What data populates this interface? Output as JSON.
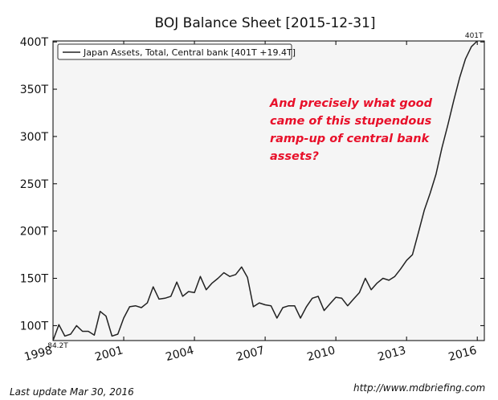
{
  "chart_data": {
    "type": "line",
    "title": "BOJ Balance Sheet  [2015-12-31]",
    "xlabel": "",
    "ylabel": "",
    "xlim": [
      1998,
      2016.3
    ],
    "ylim": [
      84.21,
      401
    ],
    "x_ticks": [
      1998,
      2001,
      2004,
      2007,
      2010,
      2013,
      2016
    ],
    "x_tick_labels": [
      "1998",
      "2001",
      "2004",
      "2007",
      "2010",
      "2013",
      "2016"
    ],
    "y_ticks": [
      100,
      150,
      200,
      250,
      300,
      350,
      400
    ],
    "y_tick_labels": [
      "100T",
      "150T",
      "200T",
      "250T",
      "300T",
      "350T",
      "400T"
    ],
    "grid": false,
    "legend_position": "top-left",
    "series": [
      {
        "name": "Japan Assets, Total, Central bank [401T +19.4T]",
        "color": "#222222",
        "x": [
          1998.0,
          1998.25,
          1998.5,
          1998.75,
          1999.0,
          1999.25,
          1999.5,
          1999.75,
          2000.0,
          2000.25,
          2000.5,
          2000.75,
          2001.0,
          2001.25,
          2001.5,
          2001.75,
          2002.0,
          2002.25,
          2002.5,
          2002.75,
          2003.0,
          2003.25,
          2003.5,
          2003.75,
          2004.0,
          2004.25,
          2004.5,
          2004.75,
          2005.0,
          2005.25,
          2005.5,
          2005.75,
          2006.0,
          2006.25,
          2006.5,
          2006.75,
          2007.0,
          2007.25,
          2007.5,
          2007.75,
          2008.0,
          2008.25,
          2008.5,
          2008.75,
          2009.0,
          2009.25,
          2009.5,
          2009.75,
          2010.0,
          2010.25,
          2010.5,
          2010.75,
          2011.0,
          2011.25,
          2011.5,
          2011.75,
          2012.0,
          2012.25,
          2012.5,
          2012.75,
          2013.0,
          2013.25,
          2013.5,
          2013.75,
          2014.0,
          2014.25,
          2014.5,
          2014.75,
          2015.0,
          2015.25,
          2015.5,
          2015.75,
          2016.0
        ],
        "values": [
          84.21,
          101,
          89,
          91,
          100,
          94,
          94,
          90,
          115,
          110,
          89,
          91,
          108,
          120,
          121,
          119,
          124,
          141,
          128,
          129,
          131,
          146,
          131,
          136,
          135,
          152,
          138,
          145,
          150,
          156,
          152,
          154,
          162,
          151,
          120,
          124,
          122,
          121,
          108,
          119,
          121,
          121,
          108,
          120,
          129,
          131,
          116,
          123,
          130,
          129,
          121,
          128,
          135,
          150,
          138,
          145,
          150,
          148,
          152,
          160,
          169,
          175,
          198,
          222,
          240,
          260,
          288,
          312,
          338,
          362,
          382,
          395,
          401
        ]
      }
    ],
    "point_labels": {
      "first": "84.2T",
      "last": "401T"
    },
    "annotation": "And precisely what good came of this stupendous ramp-up of central bank assets?"
  },
  "footer": {
    "last_update": "Last update Mar 30, 2016",
    "source_url": "http://www.mdbriefing.com"
  }
}
